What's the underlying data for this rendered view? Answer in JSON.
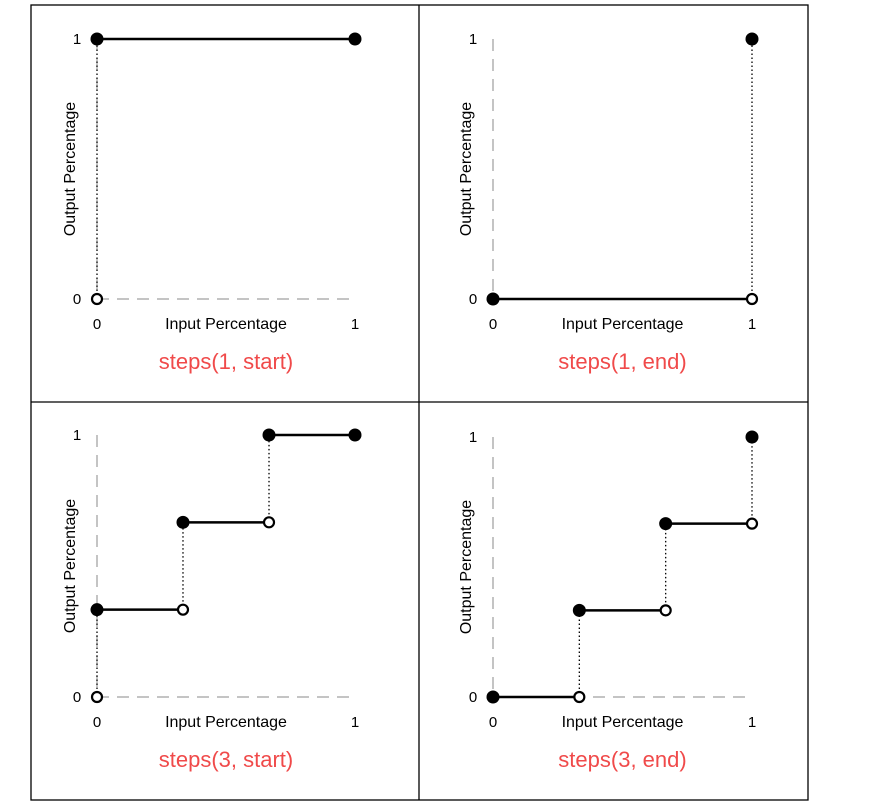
{
  "colors": {
    "caption": "#f04a4a",
    "line": "#000000",
    "frame": "#000000",
    "guide": "#888888"
  },
  "chart_data": [
    {
      "type": "line",
      "title": "steps(1, start)",
      "xlabel": "Input Percentage",
      "ylabel": "Output Percentage",
      "xlim": [
        0,
        1
      ],
      "ylim": [
        0,
        1
      ],
      "xticks": [
        "0",
        "1"
      ],
      "yticks": [
        "0",
        "1"
      ],
      "segments": [
        {
          "x": [
            0,
            1
          ],
          "y": [
            1,
            1
          ]
        }
      ],
      "risers": [
        {
          "x": 0,
          "y": [
            0,
            1
          ]
        }
      ],
      "filled_points": [
        {
          "x": 0,
          "y": 1
        },
        {
          "x": 1,
          "y": 1
        }
      ],
      "open_points": [
        {
          "x": 0,
          "y": 0
        }
      ]
    },
    {
      "type": "line",
      "title": "steps(1, end)",
      "xlabel": "Input Percentage",
      "ylabel": "Output Percentage",
      "xlim": [
        0,
        1
      ],
      "ylim": [
        0,
        1
      ],
      "xticks": [
        "0",
        "1"
      ],
      "yticks": [
        "0",
        "1"
      ],
      "segments": [
        {
          "x": [
            0,
            1
          ],
          "y": [
            0,
            0
          ]
        }
      ],
      "risers": [
        {
          "x": 1,
          "y": [
            0,
            1
          ]
        }
      ],
      "filled_points": [
        {
          "x": 0,
          "y": 0
        },
        {
          "x": 1,
          "y": 1
        }
      ],
      "open_points": [
        {
          "x": 1,
          "y": 0
        }
      ]
    },
    {
      "type": "line",
      "title": "steps(3, start)",
      "xlabel": "Input Percentage",
      "ylabel": "Output Percentage",
      "xlim": [
        0,
        1
      ],
      "ylim": [
        0,
        1
      ],
      "xticks": [
        "0",
        "1"
      ],
      "yticks": [
        "0",
        "1"
      ],
      "segments": [
        {
          "x": [
            0,
            0.3333
          ],
          "y": [
            0.3333,
            0.3333
          ]
        },
        {
          "x": [
            0.3333,
            0.6667
          ],
          "y": [
            0.6667,
            0.6667
          ]
        },
        {
          "x": [
            0.6667,
            1
          ],
          "y": [
            1,
            1
          ]
        }
      ],
      "risers": [
        {
          "x": 0,
          "y": [
            0,
            0.3333
          ]
        },
        {
          "x": 0.3333,
          "y": [
            0.3333,
            0.6667
          ]
        },
        {
          "x": 0.6667,
          "y": [
            0.6667,
            1
          ]
        }
      ],
      "filled_points": [
        {
          "x": 0,
          "y": 0.3333
        },
        {
          "x": 0.3333,
          "y": 0.6667
        },
        {
          "x": 0.6667,
          "y": 1
        },
        {
          "x": 1,
          "y": 1
        }
      ],
      "open_points": [
        {
          "x": 0,
          "y": 0
        },
        {
          "x": 0.3333,
          "y": 0.3333
        },
        {
          "x": 0.6667,
          "y": 0.6667
        }
      ]
    },
    {
      "type": "line",
      "title": "steps(3, end)",
      "xlabel": "Input Percentage",
      "ylabel": "Output Percentage",
      "xlim": [
        0,
        1
      ],
      "ylim": [
        0,
        1
      ],
      "xticks": [
        "0",
        "1"
      ],
      "yticks": [
        "0",
        "1"
      ],
      "segments": [
        {
          "x": [
            0,
            0.3333
          ],
          "y": [
            0,
            0
          ]
        },
        {
          "x": [
            0.3333,
            0.6667
          ],
          "y": [
            0.3333,
            0.3333
          ]
        },
        {
          "x": [
            0.6667,
            1
          ],
          "y": [
            0.6667,
            0.6667
          ]
        }
      ],
      "risers": [
        {
          "x": 0.3333,
          "y": [
            0,
            0.3333
          ]
        },
        {
          "x": 0.6667,
          "y": [
            0.3333,
            0.6667
          ]
        },
        {
          "x": 1,
          "y": [
            0.6667,
            1
          ]
        }
      ],
      "filled_points": [
        {
          "x": 0,
          "y": 0
        },
        {
          "x": 0.3333,
          "y": 0.3333
        },
        {
          "x": 0.6667,
          "y": 0.6667
        },
        {
          "x": 1,
          "y": 1
        }
      ],
      "open_points": [
        {
          "x": 0.3333,
          "y": 0
        },
        {
          "x": 0.6667,
          "y": 0.3333
        },
        {
          "x": 1,
          "y": 0.6667
        }
      ]
    }
  ]
}
